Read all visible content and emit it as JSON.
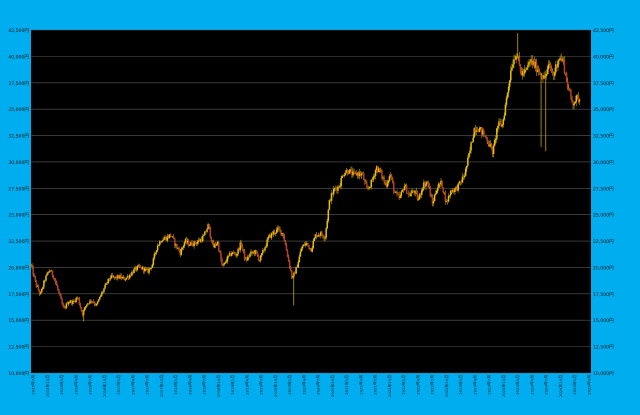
{
  "colors": {
    "frame_bg": "#00AEEF",
    "plot_bg": "#000000",
    "grid": "#5a5a5a",
    "axis_text": "#111111",
    "up_candle": "#E8C400",
    "down_candle": "#C0392B",
    "wick": "#C8A200"
  },
  "chart_data": {
    "type": "candlestick",
    "title": "",
    "xlabel": "",
    "ylabel": "",
    "ylim": [
      10000,
      42500
    ],
    "grid": true,
    "y_ticks": [
      {
        "v": 10000,
        "label": "10,000円"
      },
      {
        "v": 12500,
        "label": "12,500円"
      },
      {
        "v": 15000,
        "label": "15,000円"
      },
      {
        "v": 17500,
        "label": "17,500円"
      },
      {
        "v": 20000,
        "label": "20,000円"
      },
      {
        "v": 22500,
        "label": "22,500円"
      },
      {
        "v": 25000,
        "label": "25,000円"
      },
      {
        "v": 27500,
        "label": "27,500円"
      },
      {
        "v": 30000,
        "label": "30,000円"
      },
      {
        "v": 32500,
        "label": "32,500円"
      },
      {
        "v": 35000,
        "label": "35,000円"
      },
      {
        "v": 37500,
        "label": "37,500円"
      },
      {
        "v": 40000,
        "label": "40,000円"
      },
      {
        "v": 42500,
        "label": "42,500円"
      }
    ],
    "x_range": [
      "2015-07",
      "2025-07"
    ],
    "x_ticks": [
      "2015年7月",
      "2015年10月",
      "2016年1月",
      "2016年4月",
      "2016年7月",
      "2016年10月",
      "2017年1月",
      "2017年4月",
      "2017年7月",
      "2017年10月",
      "2018年1月",
      "2018年4月",
      "2018年7月",
      "2018年10月",
      "2019年1月",
      "2019年4月",
      "2019年7月",
      "2019年10月",
      "2020年1月",
      "2020年4月",
      "2020年7月",
      "2020年10月",
      "2021年1月",
      "2021年4月",
      "2021年7月",
      "2021年10月",
      "2022年1月",
      "2022年4月",
      "2022年7月",
      "2022年10月",
      "2023年1月",
      "2023年4月",
      "2023年7月",
      "2023年10月",
      "2024年1月",
      "2024年4月",
      "2024年7月",
      "2024年10月",
      "2025年1月",
      "2025年4月"
    ],
    "series": [
      {
        "close_path": [
          [
            "2015-07",
            20200
          ],
          [
            "2015-08",
            18500
          ],
          [
            "2015-09",
            17400
          ],
          [
            "2015-10",
            18900
          ],
          [
            "2015-11",
            19800
          ],
          [
            "2015-12",
            19000
          ],
          [
            "2016-01",
            17500
          ],
          [
            "2016-02",
            16000
          ],
          [
            "2016-03",
            16800
          ],
          [
            "2016-04",
            16700
          ],
          [
            "2016-05",
            17200
          ],
          [
            "2016-06",
            15600
          ],
          [
            "2016-07",
            16600
          ],
          [
            "2016-08",
            16900
          ],
          [
            "2016-09",
            16400
          ],
          [
            "2016-10",
            17400
          ],
          [
            "2016-11",
            18300
          ],
          [
            "2016-12",
            19100
          ],
          [
            "2017-01",
            19000
          ],
          [
            "2017-02",
            19100
          ],
          [
            "2017-03",
            18900
          ],
          [
            "2017-04",
            19200
          ],
          [
            "2017-05",
            19700
          ],
          [
            "2017-06",
            20000
          ],
          [
            "2017-07",
            19900
          ],
          [
            "2017-08",
            19600
          ],
          [
            "2017-09",
            20300
          ],
          [
            "2017-10",
            22000
          ],
          [
            "2017-11",
            22700
          ],
          [
            "2017-12",
            22800
          ],
          [
            "2018-01",
            23100
          ],
          [
            "2018-02",
            22100
          ],
          [
            "2018-03",
            21400
          ],
          [
            "2018-04",
            22500
          ],
          [
            "2018-05",
            22200
          ],
          [
            "2018-06",
            22300
          ],
          [
            "2018-07",
            22500
          ],
          [
            "2018-08",
            22900
          ],
          [
            "2018-09",
            24000
          ],
          [
            "2018-10",
            21900
          ],
          [
            "2018-11",
            22400
          ],
          [
            "2018-12",
            20000
          ],
          [
            "2019-01",
            20800
          ],
          [
            "2019-02",
            21400
          ],
          [
            "2019-03",
            21200
          ],
          [
            "2019-04",
            22300
          ],
          [
            "2019-05",
            20600
          ],
          [
            "2019-06",
            21300
          ],
          [
            "2019-07",
            21500
          ],
          [
            "2019-08",
            20700
          ],
          [
            "2019-09",
            21800
          ],
          [
            "2019-10",
            22900
          ],
          [
            "2019-11",
            23300
          ],
          [
            "2019-12",
            23600
          ],
          [
            "2020-01",
            23200
          ],
          [
            "2020-02",
            21100
          ],
          [
            "2020-03",
            18900
          ],
          [
            "2020-04",
            20100
          ],
          [
            "2020-05",
            21900
          ],
          [
            "2020-06",
            22300
          ],
          [
            "2020-07",
            21700
          ],
          [
            "2020-08",
            23100
          ],
          [
            "2020-09",
            23200
          ],
          [
            "2020-10",
            22900
          ],
          [
            "2020-11",
            26400
          ],
          [
            "2020-12",
            27400
          ],
          [
            "2021-01",
            27700
          ],
          [
            "2021-02",
            29000
          ],
          [
            "2021-03",
            29200
          ],
          [
            "2021-04",
            28800
          ],
          [
            "2021-05",
            28900
          ],
          [
            "2021-06",
            28800
          ],
          [
            "2021-07",
            27300
          ],
          [
            "2021-08",
            28100
          ],
          [
            "2021-09",
            29500
          ],
          [
            "2021-10",
            28900
          ],
          [
            "2021-11",
            27800
          ],
          [
            "2021-12",
            28800
          ],
          [
            "2022-01",
            27000
          ],
          [
            "2022-02",
            26500
          ],
          [
            "2022-03",
            27800
          ],
          [
            "2022-04",
            26800
          ],
          [
            "2022-05",
            27300
          ],
          [
            "2022-06",
            26400
          ],
          [
            "2022-07",
            27800
          ],
          [
            "2022-08",
            28100
          ],
          [
            "2022-09",
            26000
          ],
          [
            "2022-10",
            27600
          ],
          [
            "2022-11",
            28000
          ],
          [
            "2022-12",
            26100
          ],
          [
            "2023-01",
            27300
          ],
          [
            "2023-02",
            27400
          ],
          [
            "2023-03",
            28000
          ],
          [
            "2023-04",
            28900
          ],
          [
            "2023-05",
            30900
          ],
          [
            "2023-06",
            33200
          ],
          [
            "2023-07",
            33200
          ],
          [
            "2023-08",
            32600
          ],
          [
            "2023-09",
            31900
          ],
          [
            "2023-10",
            30900
          ],
          [
            "2023-11",
            33500
          ],
          [
            "2023-12",
            33500
          ],
          [
            "2024-01",
            36300
          ],
          [
            "2024-02",
            39200
          ],
          [
            "2024-03",
            40400
          ],
          [
            "2024-04",
            38400
          ],
          [
            "2024-05",
            38500
          ],
          [
            "2024-06",
            39600
          ],
          [
            "2024-07",
            39100
          ],
          [
            "2024-08",
            38600
          ],
          [
            "2024-09",
            37900
          ],
          [
            "2024-10",
            39100
          ],
          [
            "2024-11",
            38200
          ],
          [
            "2024-12",
            39900
          ],
          [
            "2025-01",
            39600
          ],
          [
            "2025-02",
            37200
          ],
          [
            "2025-03",
            35600
          ],
          [
            "2025-04",
            36000
          ]
        ],
        "spikes": [
          {
            "date": "2016-06",
            "low": 14900
          },
          {
            "date": "2020-03",
            "low": 16400
          },
          {
            "date": "2024-03",
            "high": 42200
          },
          {
            "date": "2024-08",
            "low": 31400
          },
          {
            "date": "2024-09",
            "low": 31000
          }
        ]
      }
    ]
  }
}
